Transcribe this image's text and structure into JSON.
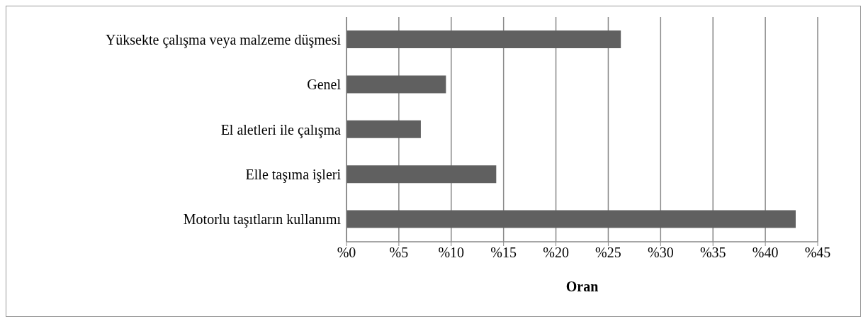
{
  "chart_data": {
    "type": "bar",
    "orientation": "horizontal",
    "xlabel": "Oran",
    "categories": [
      "Yüksekte çalışma veya malzeme düşmesi",
      "Genel",
      "El aletleri ile çalışma",
      "Elle taşıma işleri",
      "Motorlu taşıtların kullanımı"
    ],
    "values": [
      26.2,
      9.5,
      7.1,
      14.3,
      42.9
    ],
    "color": "#606060",
    "xlim": [
      0,
      45
    ],
    "xticks": [
      {
        "value": 0,
        "label": "%0"
      },
      {
        "value": 5,
        "label": "%5"
      },
      {
        "value": 10,
        "label": "%10"
      },
      {
        "value": 15,
        "label": "%15"
      },
      {
        "value": 20,
        "label": "%20"
      },
      {
        "value": 25,
        "label": "%25"
      },
      {
        "value": 30,
        "label": "%30"
      },
      {
        "value": 35,
        "label": "%35"
      },
      {
        "value": 40,
        "label": "%40"
      },
      {
        "value": 45,
        "label": "%45"
      }
    ],
    "grid": "x"
  }
}
